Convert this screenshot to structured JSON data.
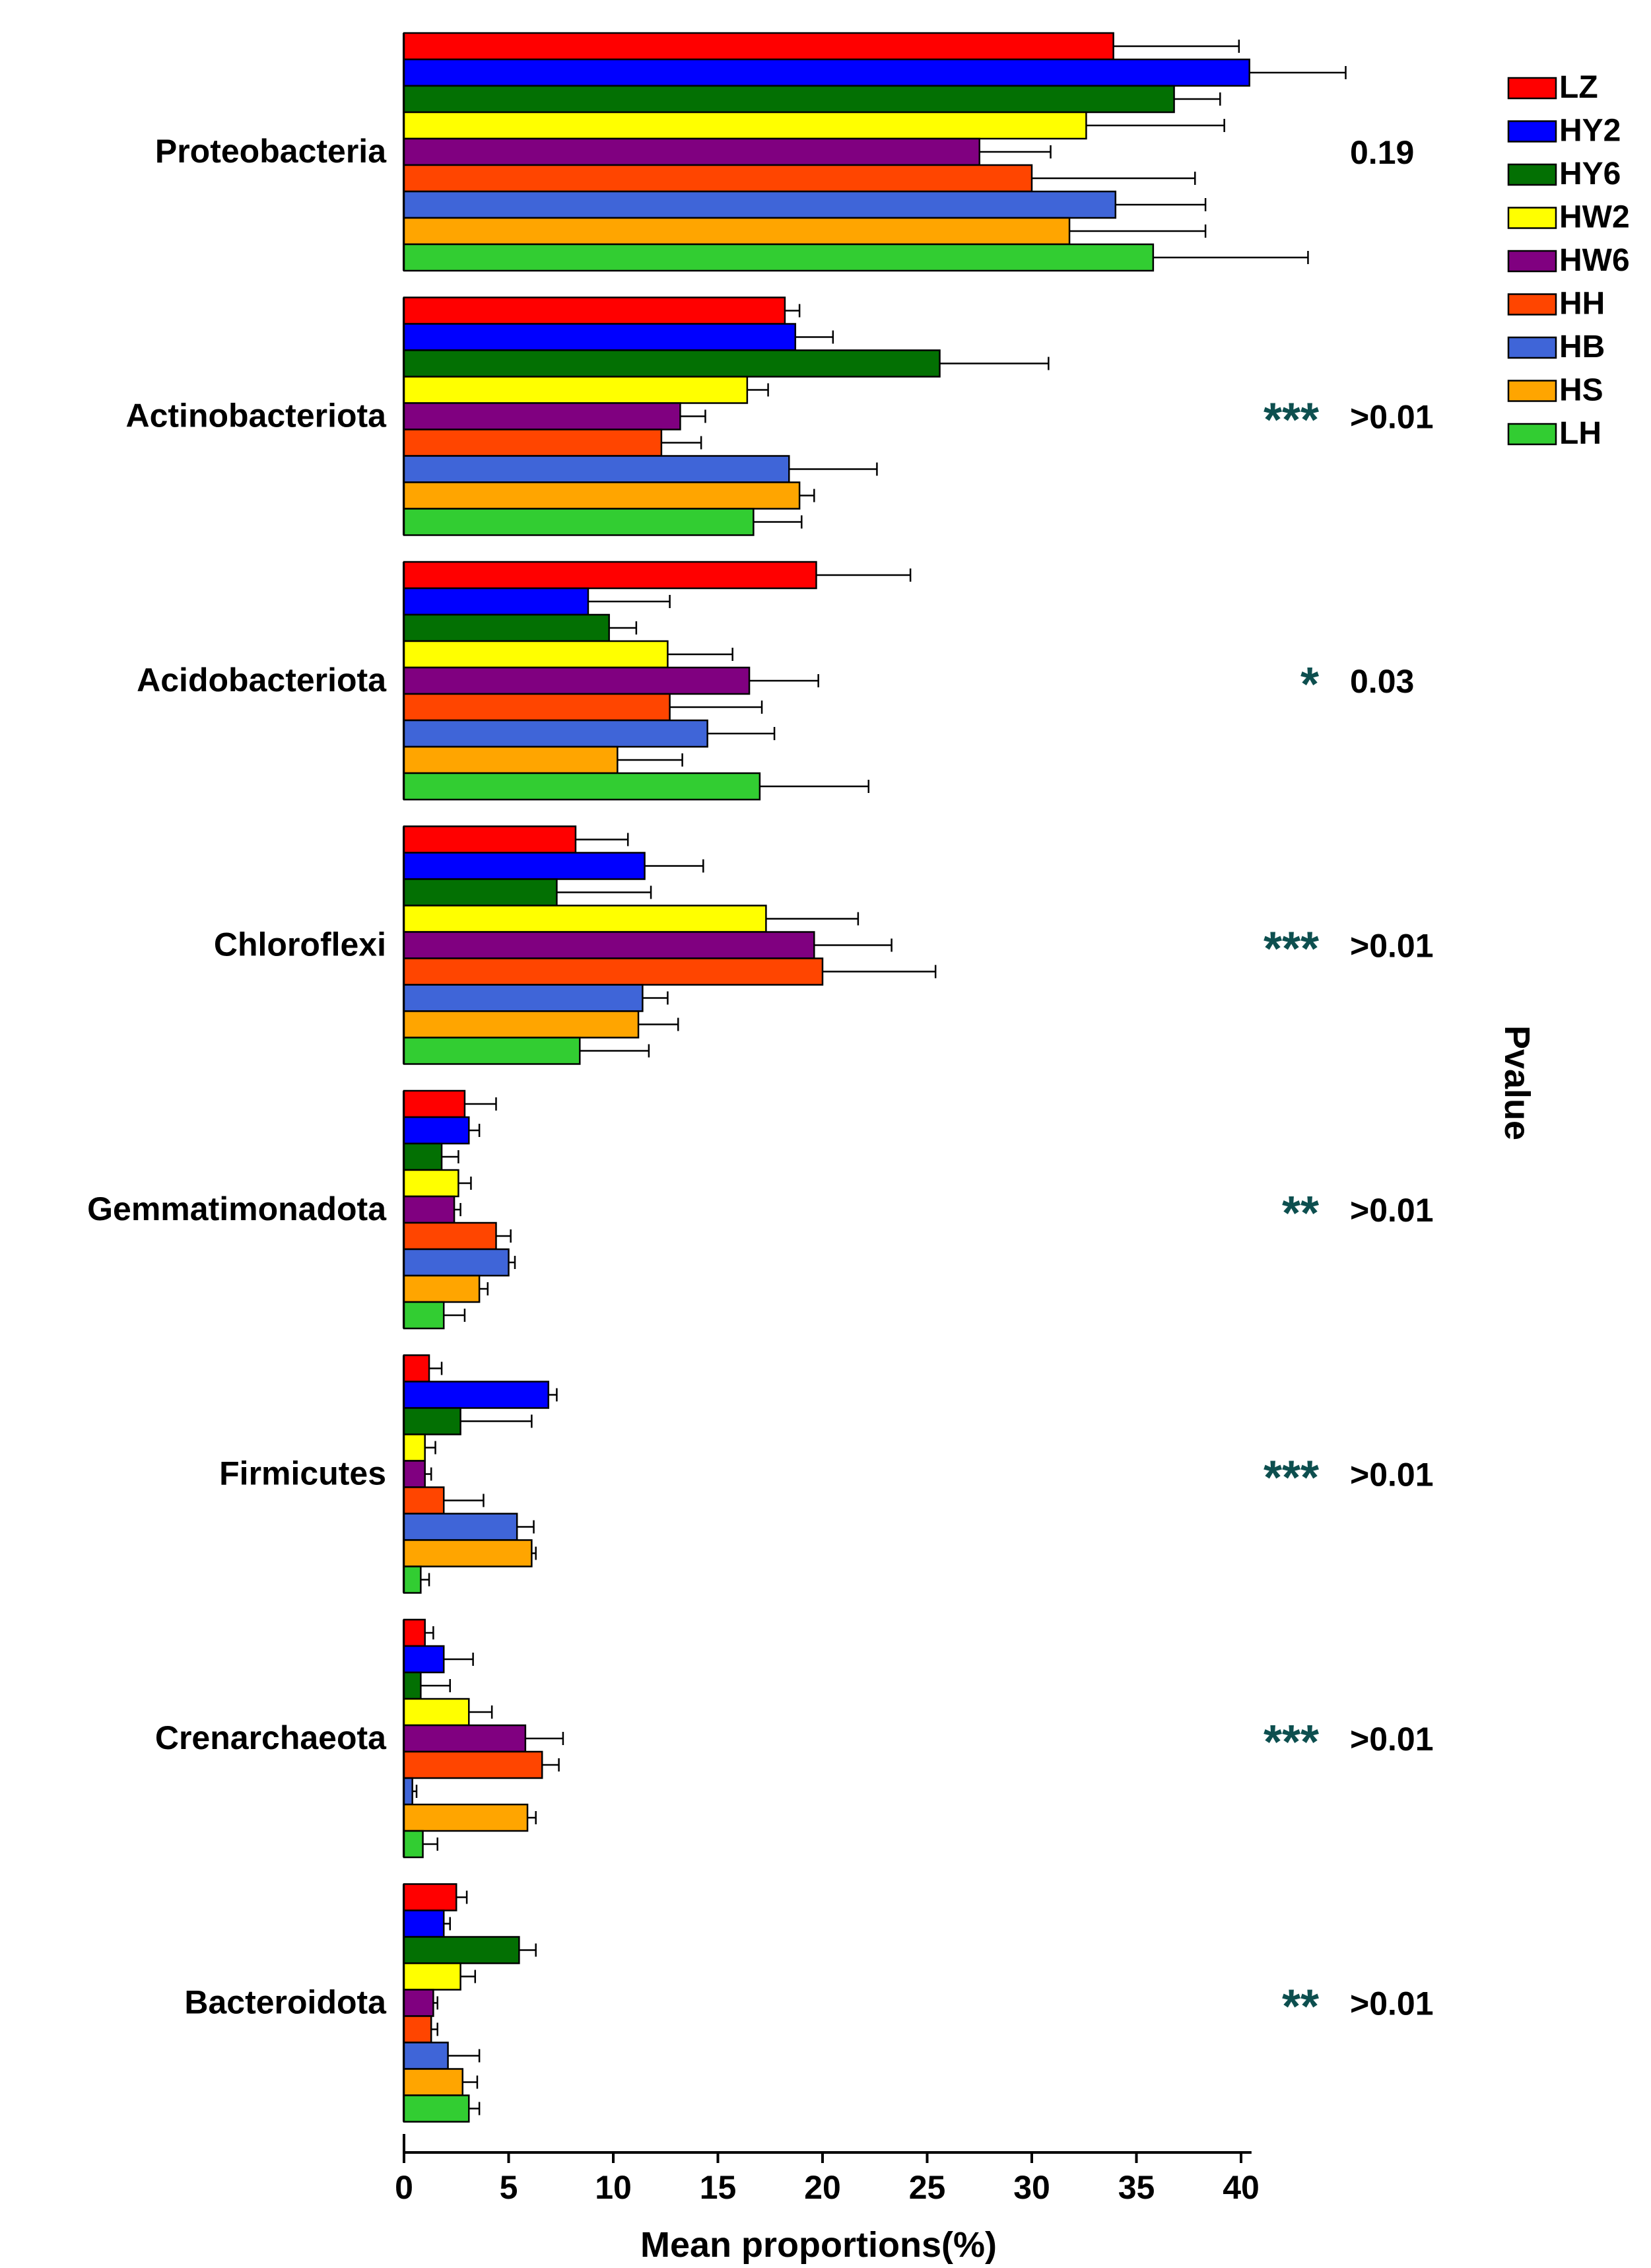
{
  "chart_data": {
    "type": "bar",
    "orientation": "horizontal",
    "xlabel": "Mean proportions(%)",
    "ylabel": "",
    "right_axis_label": "Pvalue",
    "xlim": [
      0,
      40.5
    ],
    "xticks": [
      0,
      5,
      10,
      15,
      20,
      25,
      30,
      35,
      40
    ],
    "legend_position": "top-right",
    "categories": [
      "Proteobacteria",
      "Actinobacteriota",
      "Acidobacteriota",
      "Chloroflexi",
      "Gemmatimonadota",
      "Firmicutes",
      "Crenarchaeota",
      "Bacteroidota"
    ],
    "pvalues": [
      "0.19",
      ">0.01",
      "0.03",
      ">0.01",
      ">0.01",
      ">0.01",
      ">0.01",
      ">0.01"
    ],
    "significance": [
      "",
      "***",
      "*",
      "***",
      "**",
      "***",
      "***",
      "**"
    ],
    "significance_color": "#0d4f4f",
    "series": [
      {
        "name": "LZ",
        "color": "#ff0000",
        "values": [
          33.9,
          18.2,
          19.7,
          8.2,
          2.9,
          1.2,
          1.0,
          2.5
        ],
        "errors": [
          6.0,
          0.7,
          4.5,
          2.5,
          1.5,
          0.6,
          0.4,
          0.5
        ]
      },
      {
        "name": "HY2",
        "color": "#0000ff",
        "values": [
          40.4,
          18.7,
          8.8,
          11.5,
          3.1,
          6.9,
          1.9,
          1.9
        ],
        "errors": [
          4.6,
          1.8,
          3.9,
          2.8,
          0.5,
          0.4,
          1.4,
          0.3
        ]
      },
      {
        "name": "HY6",
        "color": "#037003",
        "values": [
          36.8,
          25.6,
          9.8,
          7.3,
          1.8,
          2.7,
          0.8,
          5.5
        ],
        "errors": [
          2.2,
          5.2,
          1.3,
          4.5,
          0.8,
          3.4,
          1.4,
          0.8
        ]
      },
      {
        "name": "HW2",
        "color": "#ffff00",
        "values": [
          32.6,
          16.4,
          12.6,
          17.3,
          2.6,
          1.0,
          3.1,
          2.7
        ],
        "errors": [
          6.6,
          1.0,
          3.1,
          4.4,
          0.6,
          0.5,
          1.1,
          0.7
        ]
      },
      {
        "name": "HW6",
        "color": "#800080",
        "values": [
          27.5,
          13.2,
          16.5,
          19.6,
          2.4,
          1.0,
          5.8,
          1.4
        ],
        "errors": [
          3.4,
          1.2,
          3.3,
          3.7,
          0.3,
          0.3,
          1.8,
          0.2
        ]
      },
      {
        "name": "HH",
        "color": "#ff4500",
        "values": [
          30.0,
          12.3,
          12.7,
          20.0,
          4.4,
          1.9,
          6.6,
          1.3
        ],
        "errors": [
          7.8,
          1.9,
          4.4,
          5.4,
          0.7,
          1.9,
          0.8,
          0.3
        ]
      },
      {
        "name": "HB",
        "color": "#3f65d8",
        "values": [
          34.0,
          18.4,
          14.5,
          11.4,
          5.0,
          5.4,
          0.4,
          2.1
        ],
        "errors": [
          4.3,
          4.2,
          3.2,
          1.2,
          0.3,
          0.8,
          0.2,
          1.5
        ]
      },
      {
        "name": "HS",
        "color": "#ffa500",
        "values": [
          31.8,
          18.9,
          10.2,
          11.2,
          3.6,
          6.1,
          5.9,
          2.8
        ],
        "errors": [
          6.5,
          0.7,
          3.1,
          1.9,
          0.4,
          0.2,
          0.4,
          0.7
        ]
      },
      {
        "name": "LH",
        "color": "#32cd32",
        "values": [
          35.8,
          16.7,
          17.0,
          8.4,
          1.9,
          0.8,
          0.9,
          3.1
        ],
        "errors": [
          7.4,
          2.3,
          5.2,
          3.3,
          1.0,
          0.4,
          0.7,
          0.5
        ]
      }
    ]
  }
}
